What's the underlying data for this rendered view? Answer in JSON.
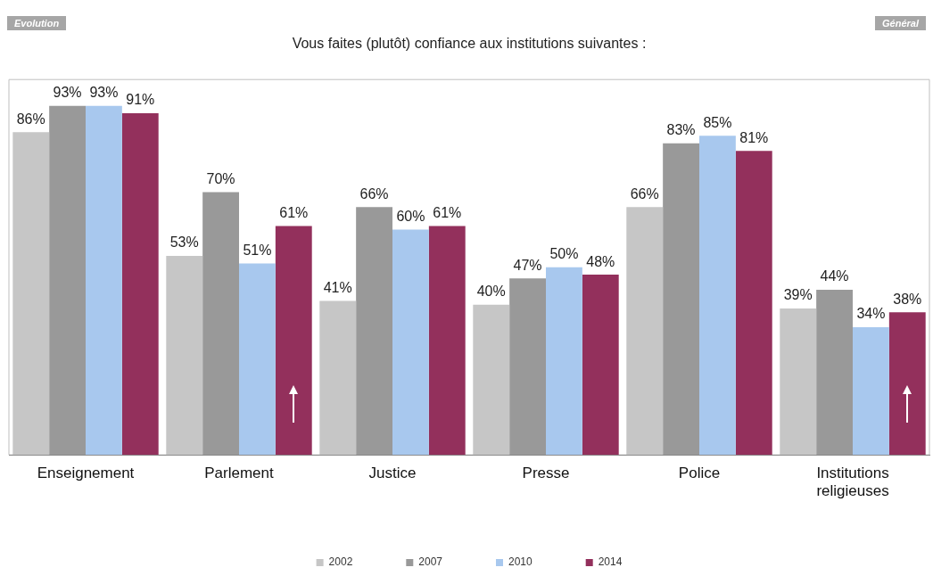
{
  "chart_data": {
    "type": "bar",
    "title": "Vous faites (plutôt) confiance aux institutions suivantes :",
    "categories": [
      "Enseignement",
      "Parlement",
      "Justice",
      "Presse",
      "Police",
      "Institutions religieuses"
    ],
    "series": [
      {
        "name": "2002",
        "color": "#c6c6c6",
        "values": [
          86,
          53,
          41,
          40,
          66,
          39
        ],
        "value_labels": [
          "86%",
          "53%",
          "41%",
          "40%",
          "66%",
          "39%"
        ]
      },
      {
        "name": "2007",
        "color": "#999999",
        "values": [
          93,
          70,
          66,
          47,
          83,
          44
        ],
        "value_labels": [
          "93%",
          "70%",
          "66%",
          "47%",
          "83%",
          "44%"
        ]
      },
      {
        "name": "2010",
        "color": "#a8c8ee",
        "values": [
          93,
          51,
          60,
          50,
          85,
          34
        ],
        "value_labels": [
          "93%",
          "51%",
          "60%",
          "50%",
          "85%",
          "34%"
        ]
      },
      {
        "name": "2014",
        "color": "#93305c",
        "values": [
          91,
          61,
          61,
          48,
          81,
          38
        ],
        "value_labels": [
          "91%",
          "61%",
          "61%",
          "48%",
          "81%",
          "38%"
        ]
      }
    ],
    "ylim": [
      0,
      100
    ],
    "tick_labels": "x",
    "grid": false,
    "legend": "bottom",
    "annotations": [
      "Evolution",
      "Général"
    ]
  }
}
